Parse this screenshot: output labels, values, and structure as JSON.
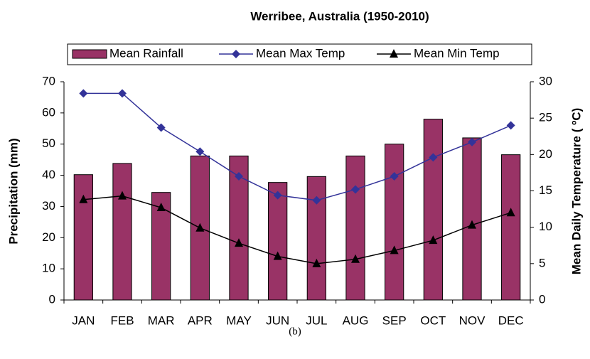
{
  "chart_data": {
    "type": "bar",
    "title": "Werribee, Australia (1950-2010)",
    "caption": "(b)",
    "ylabel": "Precipitation (mm)",
    "y2label": "Mean Daily Temperature (  ºC)",
    "categories": [
      "JAN",
      "FEB",
      "MAR",
      "APR",
      "MAY",
      "JUN",
      "JUL",
      "AUG",
      "SEP",
      "OCT",
      "NOV",
      "DEC"
    ],
    "series": [
      {
        "name": "Mean Rainfall",
        "type": "bar",
        "color": "#993366",
        "values": [
          40.2,
          43.8,
          34.5,
          46.2,
          46.2,
          37.7,
          39.6,
          46.2,
          50.0,
          58.0,
          52.0,
          46.6
        ]
      },
      {
        "name": "Mean Max Temp",
        "type": "line",
        "marker": "diamond",
        "color": "#333399",
        "axis": "y2",
        "values": [
          28.4,
          28.4,
          23.7,
          20.4,
          17.0,
          14.4,
          13.7,
          15.2,
          17.0,
          19.6,
          21.7,
          24.0
        ]
      },
      {
        "name": "Mean Min Temp",
        "type": "line",
        "marker": "triangle",
        "color": "#000000",
        "axis": "y2",
        "values": [
          13.8,
          14.3,
          12.7,
          9.9,
          7.8,
          6.0,
          5.0,
          5.6,
          6.8,
          8.2,
          10.3,
          12.0
        ]
      }
    ],
    "ylim": [
      0,
      70
    ],
    "yticks": [
      0,
      10,
      20,
      30,
      40,
      50,
      60,
      70
    ],
    "y2lim": [
      0,
      30
    ],
    "y2ticks": [
      0,
      5,
      10,
      15,
      20,
      25,
      30
    ],
    "grid": false,
    "legend": "top"
  }
}
